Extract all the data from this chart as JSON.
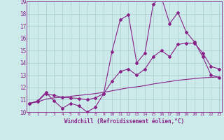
{
  "xlabel": "Windchill (Refroidissement éolien,°C)",
  "background_color": "#cceaea",
  "grid_color": "#aacccc",
  "line_color": "#882288",
  "x_values": [
    0,
    1,
    2,
    3,
    4,
    5,
    6,
    7,
    8,
    9,
    10,
    11,
    12,
    13,
    14,
    15,
    16,
    17,
    18,
    19,
    20,
    21,
    22,
    23
  ],
  "y_main": [
    10.7,
    10.9,
    11.6,
    10.9,
    10.3,
    10.7,
    10.5,
    10.0,
    10.4,
    11.5,
    14.9,
    17.5,
    17.9,
    14.0,
    14.8,
    18.8,
    19.3,
    17.2,
    18.1,
    16.5,
    15.7,
    14.5,
    13.0,
    12.8
  ],
  "y_line2": [
    10.7,
    10.85,
    11.5,
    11.35,
    11.2,
    11.15,
    11.1,
    11.0,
    11.15,
    11.5,
    12.5,
    13.3,
    13.5,
    13.0,
    13.5,
    14.5,
    15.0,
    14.5,
    15.5,
    15.6,
    15.6,
    14.8,
    13.7,
    13.5
  ],
  "y_line3": [
    10.7,
    10.82,
    11.05,
    11.15,
    11.2,
    11.28,
    11.35,
    11.42,
    11.5,
    11.6,
    11.72,
    11.85,
    11.97,
    12.05,
    12.15,
    12.28,
    12.38,
    12.48,
    12.58,
    12.65,
    12.72,
    12.78,
    12.82,
    12.85
  ],
  "ylim": [
    10,
    19
  ],
  "xlim": [
    -0.3,
    23.3
  ],
  "yticks": [
    10,
    11,
    12,
    13,
    14,
    15,
    16,
    17,
    18,
    19
  ],
  "xticks": [
    0,
    1,
    2,
    3,
    4,
    5,
    6,
    7,
    8,
    9,
    10,
    11,
    12,
    13,
    14,
    15,
    16,
    17,
    18,
    19,
    20,
    21,
    22,
    23
  ]
}
